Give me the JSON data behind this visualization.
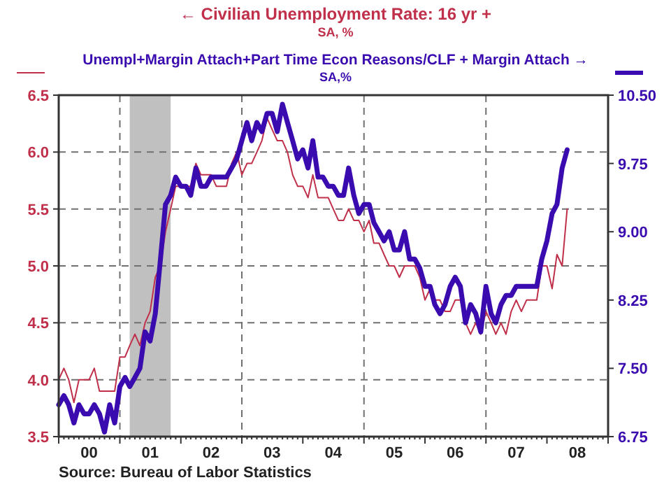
{
  "chart_data": {
    "type": "line",
    "legend": "top",
    "grid": "y",
    "line_style": "solid",
    "marker": "none",
    "annotations": [
      "SA, %",
      "SA,%",
      "Source:  Bureau of Labor Statistics"
    ],
    "x": [
      "2000-01",
      "2000-02",
      "2000-03",
      "2000-04",
      "2000-05",
      "2000-06",
      "2000-07",
      "2000-08",
      "2000-09",
      "2000-10",
      "2000-11",
      "2000-12",
      "2001-01",
      "2001-02",
      "2001-03",
      "2001-04",
      "2001-05",
      "2001-06",
      "2001-07",
      "2001-08",
      "2001-09",
      "2001-10",
      "2001-11",
      "2001-12",
      "2002-01",
      "2002-02",
      "2002-03",
      "2002-04",
      "2002-05",
      "2002-06",
      "2002-07",
      "2002-08",
      "2002-09",
      "2002-10",
      "2002-11",
      "2002-12",
      "2003-01",
      "2003-02",
      "2003-03",
      "2003-04",
      "2003-05",
      "2003-06",
      "2003-07",
      "2003-08",
      "2003-09",
      "2003-10",
      "2003-11",
      "2003-12",
      "2004-01",
      "2004-02",
      "2004-03",
      "2004-04",
      "2004-05",
      "2004-06",
      "2004-07",
      "2004-08",
      "2004-09",
      "2004-10",
      "2004-11",
      "2004-12",
      "2005-01",
      "2005-02",
      "2005-03",
      "2005-04",
      "2005-05",
      "2005-06",
      "2005-07",
      "2005-08",
      "2005-09",
      "2005-10",
      "2005-11",
      "2005-12",
      "2006-01",
      "2006-02",
      "2006-03",
      "2006-04",
      "2006-05",
      "2006-06",
      "2006-07",
      "2006-08",
      "2006-09",
      "2006-10",
      "2006-11",
      "2006-12",
      "2007-01",
      "2007-02",
      "2007-03",
      "2007-04",
      "2007-05",
      "2007-06",
      "2007-07",
      "2007-08",
      "2007-09",
      "2007-10",
      "2007-11",
      "2007-12",
      "2008-01",
      "2008-02",
      "2008-03",
      "2008-04",
      "2008-05"
    ],
    "xlim": [
      "2000-01",
      "2009-01"
    ],
    "xticks": [
      {
        "value": "2000-07",
        "label": "00"
      },
      {
        "value": "2001-07",
        "label": "01"
      },
      {
        "value": "2002-07",
        "label": "02"
      },
      {
        "value": "2003-07",
        "label": "03"
      },
      {
        "value": "2004-07",
        "label": "04"
      },
      {
        "value": "2005-07",
        "label": "05"
      },
      {
        "value": "2006-07",
        "label": "06"
      },
      {
        "value": "2007-07",
        "label": "07"
      },
      {
        "value": "2008-07",
        "label": "08"
      }
    ],
    "ylim": [
      3.5,
      6.5
    ],
    "yticks": [
      3.5,
      {
        "value": 4,
        "label": "4.0"
      },
      4.5,
      {
        "value": 5,
        "label": "5.0"
      },
      5.5,
      {
        "value": 6,
        "label": "6.0"
      },
      6.5
    ],
    "y2lim": [
      6.75,
      10.5
    ],
    "y2ticks": [
      6.75,
      {
        "value": 7.5,
        "label": "7.50"
      },
      8.25,
      {
        "value": 9,
        "label": "9.00"
      },
      9.75,
      {
        "value": 10.5,
        "label": "10.50"
      }
    ],
    "bands": [
      {
        "axis": "x",
        "from": "2001-03",
        "to": "2001-11",
        "color": "#c0c0c0"
      }
    ],
    "ref_lines": [
      {
        "axis": "x",
        "value": "2001-01",
        "color": "#707070",
        "line_style": "dashed"
      },
      {
        "axis": "x",
        "value": "2003-01",
        "color": "#707070",
        "line_style": "dashed"
      },
      {
        "axis": "x",
        "value": "2005-01",
        "color": "#707070",
        "line_style": "dashed"
      },
      {
        "axis": "x",
        "value": "2007-01",
        "color": "#707070",
        "line_style": "dashed"
      }
    ],
    "series": [
      {
        "name": "← Civilian Unemployment Rate: 16 yr +",
        "color": "#c0304a",
        "values": [
          4.0,
          4.1,
          4.0,
          3.8,
          4.0,
          4.0,
          4.0,
          4.1,
          3.9,
          3.9,
          3.9,
          3.9,
          4.2,
          4.2,
          4.3,
          4.4,
          4.3,
          4.5,
          4.6,
          4.9,
          5.0,
          5.3,
          5.5,
          5.7,
          5.7,
          5.7,
          5.7,
          5.9,
          5.8,
          5.8,
          5.8,
          5.7,
          5.7,
          5.7,
          5.9,
          6.0,
          5.8,
          5.9,
          5.9,
          6.0,
          6.1,
          6.3,
          6.2,
          6.1,
          6.1,
          6.0,
          5.8,
          5.7,
          5.7,
          5.6,
          5.8,
          5.6,
          5.6,
          5.6,
          5.5,
          5.4,
          5.4,
          5.5,
          5.4,
          5.4,
          5.3,
          5.4,
          5.2,
          5.2,
          5.1,
          5.0,
          5.0,
          4.9,
          5.0,
          5.0,
          5.0,
          4.9,
          4.7,
          4.8,
          4.7,
          4.7,
          4.6,
          4.6,
          4.7,
          4.7,
          4.5,
          4.4,
          4.5,
          4.4,
          4.6,
          4.5,
          4.4,
          4.5,
          4.4,
          4.6,
          4.7,
          4.6,
          4.7,
          4.7,
          4.7,
          5.0,
          5.0,
          4.8,
          5.1,
          5.0,
          5.5
        ]
      },
      {
        "name": "Unempl+Margin Attach+Part Time Econ Reasons/CLF + Margin Attach →",
        "color": "#3a0cb0",
        "axis": "y2",
        "values": [
          7.1,
          7.2,
          7.1,
          6.9,
          7.1,
          7.0,
          7.0,
          7.1,
          7.0,
          6.8,
          7.1,
          6.9,
          7.3,
          7.4,
          7.3,
          7.4,
          7.5,
          7.9,
          7.8,
          8.1,
          8.7,
          9.3,
          9.4,
          9.6,
          9.5,
          9.5,
          9.4,
          9.7,
          9.5,
          9.5,
          9.6,
          9.6,
          9.6,
          9.6,
          9.7,
          9.8,
          10.0,
          10.2,
          10.0,
          10.2,
          10.1,
          10.3,
          10.3,
          10.1,
          10.4,
          10.2,
          10.0,
          9.8,
          9.9,
          9.7,
          10.0,
          9.6,
          9.6,
          9.5,
          9.5,
          9.4,
          9.4,
          9.7,
          9.4,
          9.2,
          9.3,
          9.3,
          9.1,
          9.0,
          8.9,
          9.0,
          8.8,
          8.8,
          9.0,
          8.7,
          8.7,
          8.6,
          8.4,
          8.4,
          8.2,
          8.1,
          8.2,
          8.4,
          8.5,
          8.4,
          8.0,
          8.2,
          8.1,
          7.9,
          8.4,
          8.1,
          8.0,
          8.2,
          8.3,
          8.3,
          8.4,
          8.4,
          8.4,
          8.4,
          8.4,
          8.7,
          8.9,
          9.2,
          9.3,
          9.7,
          9.9
        ]
      }
    ]
  }
}
